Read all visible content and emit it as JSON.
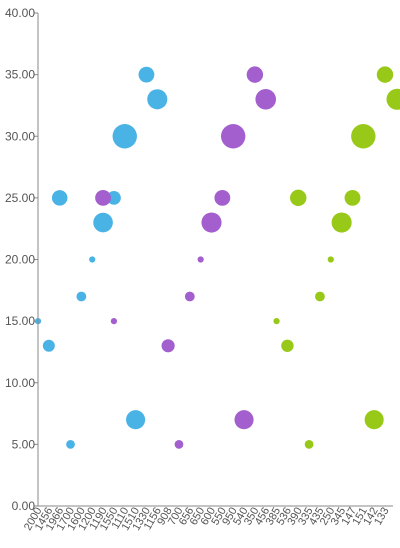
{
  "colors": {
    "axis": "#8a8a8a",
    "tick_text": "#555555",
    "series_blue": "#4ab3e6",
    "series_purple": "#a35fce",
    "series_green": "#98c918"
  },
  "chart_data": {
    "type": "scatter",
    "subtype": "bubble",
    "title": "",
    "xlabel": "",
    "ylabel": "",
    "ylim": [
      0,
      40
    ],
    "y_ticks": [
      "0.00",
      "5.00",
      "10.00",
      "15.00",
      "20.00",
      "25.00",
      "30.00",
      "35.00",
      "40.00"
    ],
    "grid": false,
    "legend": "none",
    "categories": [
      "2000",
      "1456",
      "1966",
      "1700",
      "1600",
      "1200",
      "1190",
      "1550",
      "1110",
      "1510",
      "1330",
      "1156",
      "908",
      "700",
      "656",
      "650",
      "600",
      "550",
      "950",
      "540",
      "350",
      "456",
      "385",
      "536",
      "390",
      "335",
      "435",
      "250",
      "345",
      "147",
      "151",
      "142",
      "133"
    ],
    "series": [
      {
        "color": "series_blue",
        "points": [
          {
            "x": "2000",
            "y": 15,
            "size": 4
          },
          {
            "x": "1456",
            "y": 13,
            "size": 15
          },
          {
            "x": "1966",
            "y": 25,
            "size": 25
          },
          {
            "x": "1700",
            "y": 5,
            "size": 8
          },
          {
            "x": "1600",
            "y": 17,
            "size": 10
          },
          {
            "x": "1200",
            "y": 20,
            "size": 4
          },
          {
            "x": "1190",
            "y": 23,
            "size": 40
          },
          {
            "x": "1550",
            "y": 25,
            "size": 20
          },
          {
            "x": "1110",
            "y": 30,
            "size": 62
          },
          {
            "x": "1510",
            "y": 7,
            "size": 38
          },
          {
            "x": "1330",
            "y": 35,
            "size": 26
          },
          {
            "x": "1156",
            "y": 33,
            "size": 42
          }
        ]
      },
      {
        "color": "series_purple",
        "points": [
          {
            "x": "1190",
            "y": 25,
            "size": 26
          },
          {
            "x": "1550",
            "y": 15,
            "size": 4
          },
          {
            "x": "908",
            "y": 13,
            "size": 18
          },
          {
            "x": "700",
            "y": 5,
            "size": 8
          },
          {
            "x": "656",
            "y": 17,
            "size": 10
          },
          {
            "x": "650",
            "y": 20,
            "size": 4
          },
          {
            "x": "600",
            "y": 23,
            "size": 42
          },
          {
            "x": "550",
            "y": 25,
            "size": 26
          },
          {
            "x": "950",
            "y": 30,
            "size": 62
          },
          {
            "x": "540",
            "y": 7,
            "size": 38
          },
          {
            "x": "350",
            "y": 35,
            "size": 28
          },
          {
            "x": "456",
            "y": 33,
            "size": 44
          }
        ]
      },
      {
        "color": "series_green",
        "points": [
          {
            "x": "385",
            "y": 15,
            "size": 4
          },
          {
            "x": "536",
            "y": 13,
            "size": 16
          },
          {
            "x": "390",
            "y": 25,
            "size": 28
          },
          {
            "x": "335",
            "y": 5,
            "size": 8
          },
          {
            "x": "435",
            "y": 17,
            "size": 10
          },
          {
            "x": "250",
            "y": 20,
            "size": 4
          },
          {
            "x": "345",
            "y": 23,
            "size": 42
          },
          {
            "x": "147",
            "y": 25,
            "size": 26
          },
          {
            "x": "151",
            "y": 30,
            "size": 62
          },
          {
            "x": "142",
            "y": 7,
            "size": 38
          },
          {
            "x": "133",
            "y": 35,
            "size": 28
          },
          {
            "x": "133",
            "y": 33,
            "size": 46
          }
        ]
      }
    ]
  }
}
